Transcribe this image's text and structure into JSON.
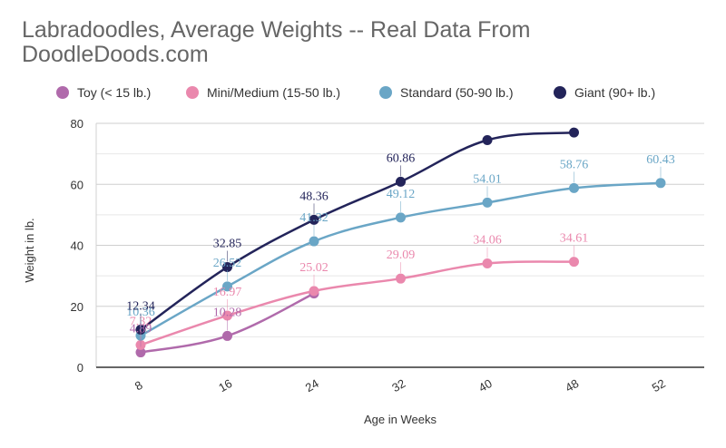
{
  "chart_data": {
    "type": "line",
    "title": "Labradoodles, Average Weights -- Real Data From DoodleDoods.com",
    "xlabel": "Age in Weeks",
    "ylabel": "Weight in lb.",
    "categories": [
      "8",
      "16",
      "24",
      "32",
      "40",
      "48",
      "52"
    ],
    "ylim": [
      0,
      80
    ],
    "yticks": [
      0,
      20,
      40,
      60,
      80
    ],
    "grid": true,
    "legend_position": "top-left",
    "series": [
      {
        "name": "Toy (< 15 lb.)",
        "color": "#b06aab",
        "values": [
          4.89,
          10.28,
          24.2,
          null,
          null,
          null,
          null
        ],
        "labels": [
          "4.89",
          "10.28",
          "",
          "",
          "",
          "",
          ""
        ]
      },
      {
        "name": "Mini/Medium (15-50 lb.)",
        "color": "#ea88ad",
        "values": [
          7.32,
          16.97,
          25.02,
          29.09,
          34.06,
          34.61,
          null
        ],
        "labels": [
          "7.32",
          "16.97",
          "25.02",
          "29.09",
          "34.06",
          "34.61",
          ""
        ]
      },
      {
        "name": "Standard (50-90 lb.)",
        "color": "#6aa6c6",
        "values": [
          10.36,
          26.52,
          41.32,
          49.12,
          54.01,
          58.76,
          60.43
        ],
        "labels": [
          "10.36",
          "26.52",
          "41.32",
          "49.12",
          "54.01",
          "58.76",
          "60.43"
        ]
      },
      {
        "name": "Giant (90+ lb.)",
        "color": "#23245a",
        "values": [
          12.34,
          32.85,
          48.36,
          60.86,
          74.5,
          77.0,
          null
        ],
        "labels": [
          "12.34",
          "32.85",
          "48.36",
          "60.86",
          "",
          "",
          ""
        ]
      }
    ]
  }
}
